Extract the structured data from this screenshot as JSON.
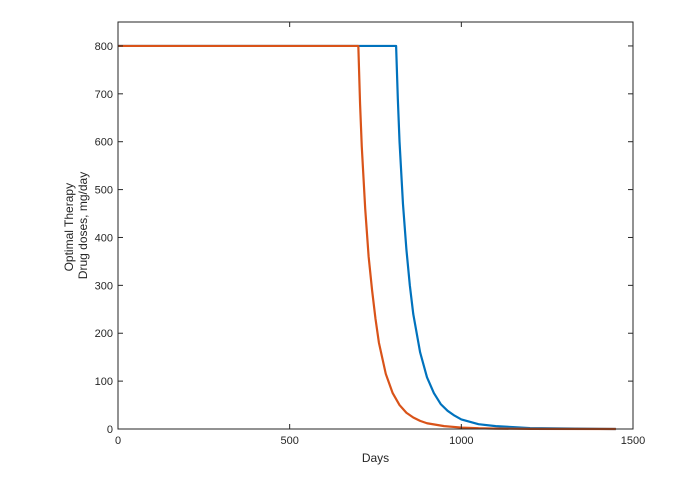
{
  "chart_data": {
    "type": "line",
    "title": "",
    "xlabel": "Days",
    "ylabel_lines": [
      "Optimal Therapy",
      "Drug doses, mg/day"
    ],
    "xlim": [
      0,
      1500
    ],
    "ylim": [
      0,
      850
    ],
    "xticks": [
      0,
      500,
      1000,
      1500
    ],
    "yticks": [
      0,
      100,
      200,
      300,
      400,
      500,
      600,
      700,
      800
    ],
    "grid": false,
    "legend": "none",
    "series": [
      {
        "color": "#0072BD",
        "x": [
          0,
          810,
          815,
          820,
          830,
          840,
          850,
          860,
          880,
          900,
          920,
          940,
          960,
          980,
          1000,
          1050,
          1100,
          1150,
          1200,
          1300,
          1400,
          1450
        ],
        "y": [
          800,
          800,
          690,
          600,
          470,
          375,
          300,
          240,
          160,
          108,
          75,
          52,
          38,
          28,
          20,
          10,
          6,
          4,
          2,
          1,
          0.3,
          0
        ]
      },
      {
        "color": "#D95319",
        "x": [
          0,
          700,
          705,
          710,
          720,
          730,
          740,
          750,
          760,
          780,
          800,
          820,
          840,
          860,
          880,
          900,
          950,
          1000,
          1050,
          1100,
          1200,
          1450
        ],
        "y": [
          800,
          800,
          680,
          590,
          460,
          360,
          290,
          230,
          180,
          115,
          75,
          50,
          34,
          24,
          17,
          12,
          6,
          3,
          1.5,
          0.8,
          0.3,
          0
        ]
      }
    ]
  }
}
